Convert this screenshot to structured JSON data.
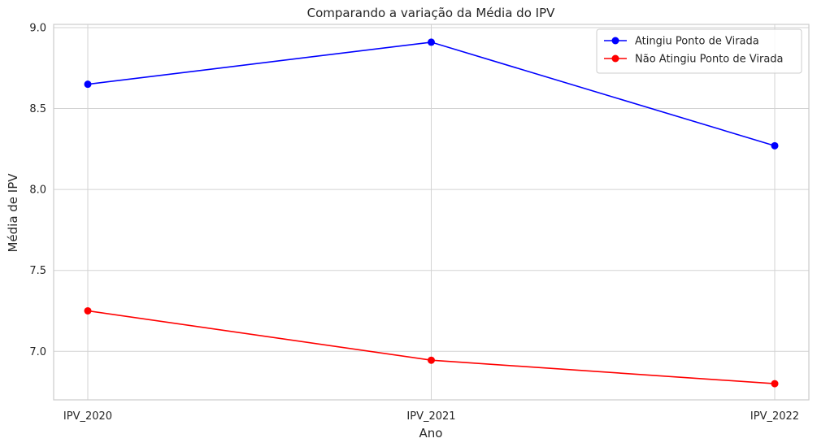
{
  "chart_data": {
    "type": "line",
    "title": "Comparando a variação da Média do IPV",
    "xlabel": "Ano",
    "ylabel": "Média de IPV",
    "categories": [
      "IPV_2020",
      "IPV_2021",
      "IPV_2022"
    ],
    "ylim": [
      6.7,
      9.02
    ],
    "yticks": [
      7.0,
      7.5,
      8.0,
      8.5,
      9.0
    ],
    "ytick_labels": [
      "7.0",
      "7.5",
      "8.0",
      "8.5",
      "9.0"
    ],
    "grid": true,
    "legend_position": "top-right",
    "series": [
      {
        "name": "Atingiu Ponto de Virada",
        "color": "#0000ff",
        "values": [
          8.65,
          8.91,
          8.27
        ]
      },
      {
        "name": "Não Atingiu Ponto de Virada",
        "color": "#ff0000",
        "values": [
          7.25,
          6.945,
          6.8
        ]
      }
    ]
  }
}
